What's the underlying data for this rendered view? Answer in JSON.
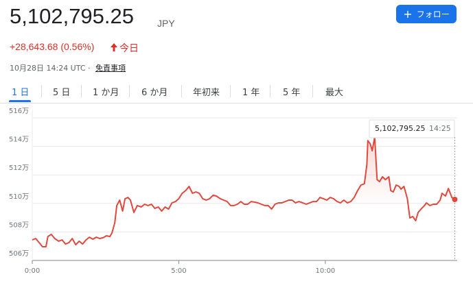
{
  "header": {
    "price": "5,102,795.25",
    "currency": "JPY",
    "change": "+28,643.68 (0.56%)",
    "period": "今日",
    "timestamp": "10月28日 14:24 UTC ·",
    "disclaimer": "免責事項",
    "follow": "フォロー"
  },
  "tabs": [
    "1 日",
    "5 日",
    "1 か月",
    "6 か月",
    "年初来",
    "1 年",
    "5 年",
    "最大"
  ],
  "chart_data": {
    "type": "line",
    "color": "#e0483b",
    "grid": true,
    "x": [
      0,
      7,
      14,
      21,
      28,
      32,
      39,
      46,
      54,
      61,
      68,
      75,
      82,
      89,
      96,
      103,
      110,
      117,
      124,
      131,
      138,
      145,
      152,
      159,
      163,
      169,
      173,
      179,
      185,
      190,
      196,
      201,
      208,
      215,
      223,
      230,
      237,
      244,
      251,
      258,
      265,
      272,
      279,
      286,
      293,
      300,
      307,
      314,
      321,
      328,
      335,
      342,
      349,
      356,
      363,
      370,
      377,
      385,
      392,
      399,
      406,
      413,
      420,
      427,
      434,
      441,
      448,
      455,
      462,
      469,
      476,
      483,
      490,
      497,
      504,
      511,
      518,
      525,
      532,
      539,
      546,
      554,
      561,
      568,
      575,
      582,
      589,
      596,
      603,
      610,
      617,
      624,
      631,
      638,
      645,
      652,
      659,
      666,
      673,
      680,
      685,
      687,
      692,
      696,
      701,
      706,
      711,
      717,
      723,
      730,
      734,
      739,
      745,
      751,
      755,
      761,
      768,
      773,
      779,
      785,
      790,
      796,
      803,
      807,
      814,
      821,
      828,
      835,
      839,
      846,
      852,
      859,
      865
    ],
    "values": [
      5074400,
      5075400,
      5072500,
      5069600,
      5069600,
      5076800,
      5078300,
      5075400,
      5073500,
      5074400,
      5071500,
      5072500,
      5075400,
      5071000,
      5073500,
      5071500,
      5074400,
      5076300,
      5074900,
      5076300,
      5075400,
      5075900,
      5077300,
      5076800,
      5079200,
      5086400,
      5098500,
      5102300,
      5094600,
      5103300,
      5104200,
      5102300,
      5093700,
      5098500,
      5097500,
      5099400,
      5098500,
      5099400,
      5096500,
      5097500,
      5094600,
      5097500,
      5096000,
      5100400,
      5101300,
      5103300,
      5107100,
      5109000,
      5111900,
      5107100,
      5108100,
      5107100,
      5103300,
      5102300,
      5103300,
      5105700,
      5105200,
      5103300,
      5102300,
      5101300,
      5098500,
      5098500,
      5099400,
      5101300,
      5099400,
      5099400,
      5101300,
      5100900,
      5100400,
      5099400,
      5098500,
      5098500,
      5096000,
      5099400,
      5100400,
      5100400,
      5101300,
      5102300,
      5102300,
      5100400,
      5101300,
      5100400,
      5099400,
      5100400,
      5101300,
      5101300,
      5104200,
      5103300,
      5102300,
      5104200,
      5103300,
      5101300,
      5100400,
      5102300,
      5100400,
      5101300,
      5104200,
      5109000,
      5112900,
      5113800,
      5127300,
      5144100,
      5141700,
      5136900,
      5146500,
      5116700,
      5115300,
      5118700,
      5116700,
      5118700,
      5109000,
      5108100,
      5112900,
      5111900,
      5110000,
      5111900,
      5103300,
      5089800,
      5090800,
      5087900,
      5093700,
      5096000,
      5098500,
      5100400,
      5098500,
      5099400,
      5099400,
      5102300,
      5107100,
      5105200,
      5110500,
      5104200,
      5102795.25
    ],
    "xlim": [
      0,
      870
    ],
    "xticks": [
      {
        "value": 0,
        "label": "0:00"
      },
      {
        "value": 300,
        "label": "5:00"
      },
      {
        "value": 600,
        "label": "10:00"
      }
    ],
    "ylim": [
      5060000,
      5160000
    ],
    "yticks": [
      {
        "value": 5060000,
        "label": "506万"
      },
      {
        "value": 5080000,
        "label": "508万"
      },
      {
        "value": 5100000,
        "label": "510万"
      },
      {
        "value": 5120000,
        "label": "512万"
      },
      {
        "value": 5140000,
        "label": "514万"
      },
      {
        "value": 5160000,
        "label": "516万"
      }
    ],
    "tooltip": {
      "value": "5,102,795.25",
      "time": "14:25"
    }
  }
}
